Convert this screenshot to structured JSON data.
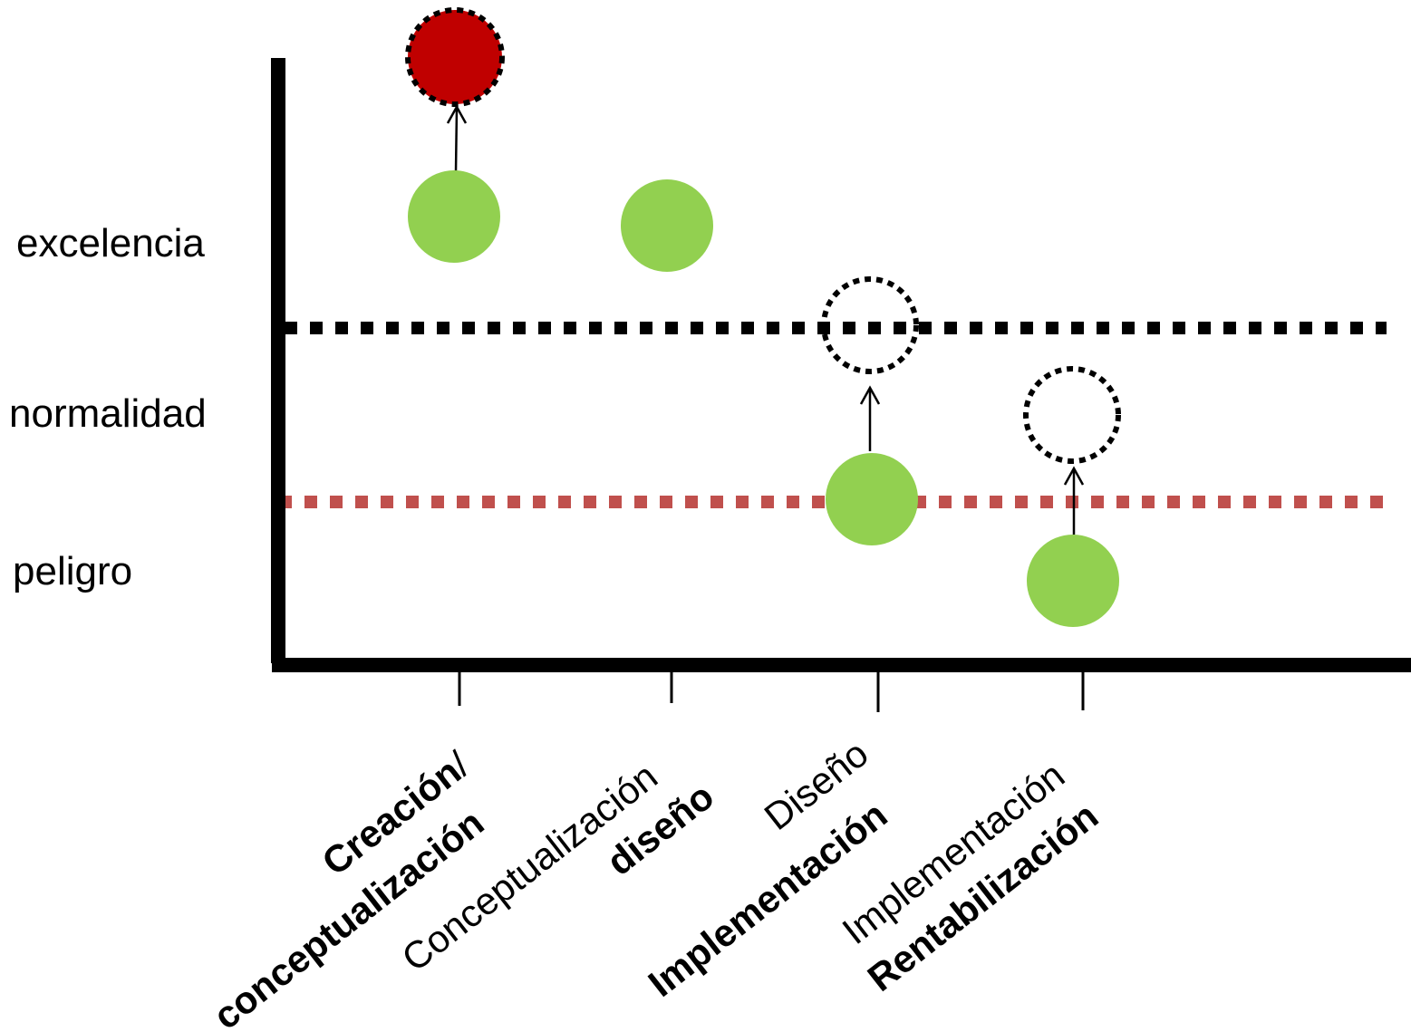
{
  "y_levels": [
    "excelencia",
    "normalidad",
    "peligro"
  ],
  "x_stages": [
    {
      "line1": "Creación/",
      "line1_bold": "Creación",
      "line1_rest": "/",
      "line2": "conceptualización"
    },
    {
      "line1": "Conceptualización",
      "line2": "diseño"
    },
    {
      "line1": "Diseño",
      "line2": "Implementación"
    },
    {
      "line1": "Implementación",
      "line2": "Rentabilización"
    }
  ],
  "colors": {
    "axis": "#000000",
    "current_marker": "#92d050",
    "target_marker_red": "#c00000",
    "upper_threshold": "#000000",
    "lower_threshold": "#c0504d"
  },
  "markers": [
    {
      "stage": "Creación/conceptualización",
      "current_level": "excelencia",
      "target_level": "above excelencia",
      "target_style": "red-filled-dashed"
    },
    {
      "stage": "Conceptualización diseño",
      "current_level": "excelencia",
      "target_level": null
    },
    {
      "stage": "Diseño Implementación",
      "current_level": "peligro/normalidad boundary",
      "target_level": "excelencia/normalidad boundary",
      "target_style": "dashed-outline"
    },
    {
      "stage": "Implementación Rentabilización",
      "current_level": "peligro",
      "target_level": "normalidad",
      "target_style": "dashed-outline"
    }
  ]
}
